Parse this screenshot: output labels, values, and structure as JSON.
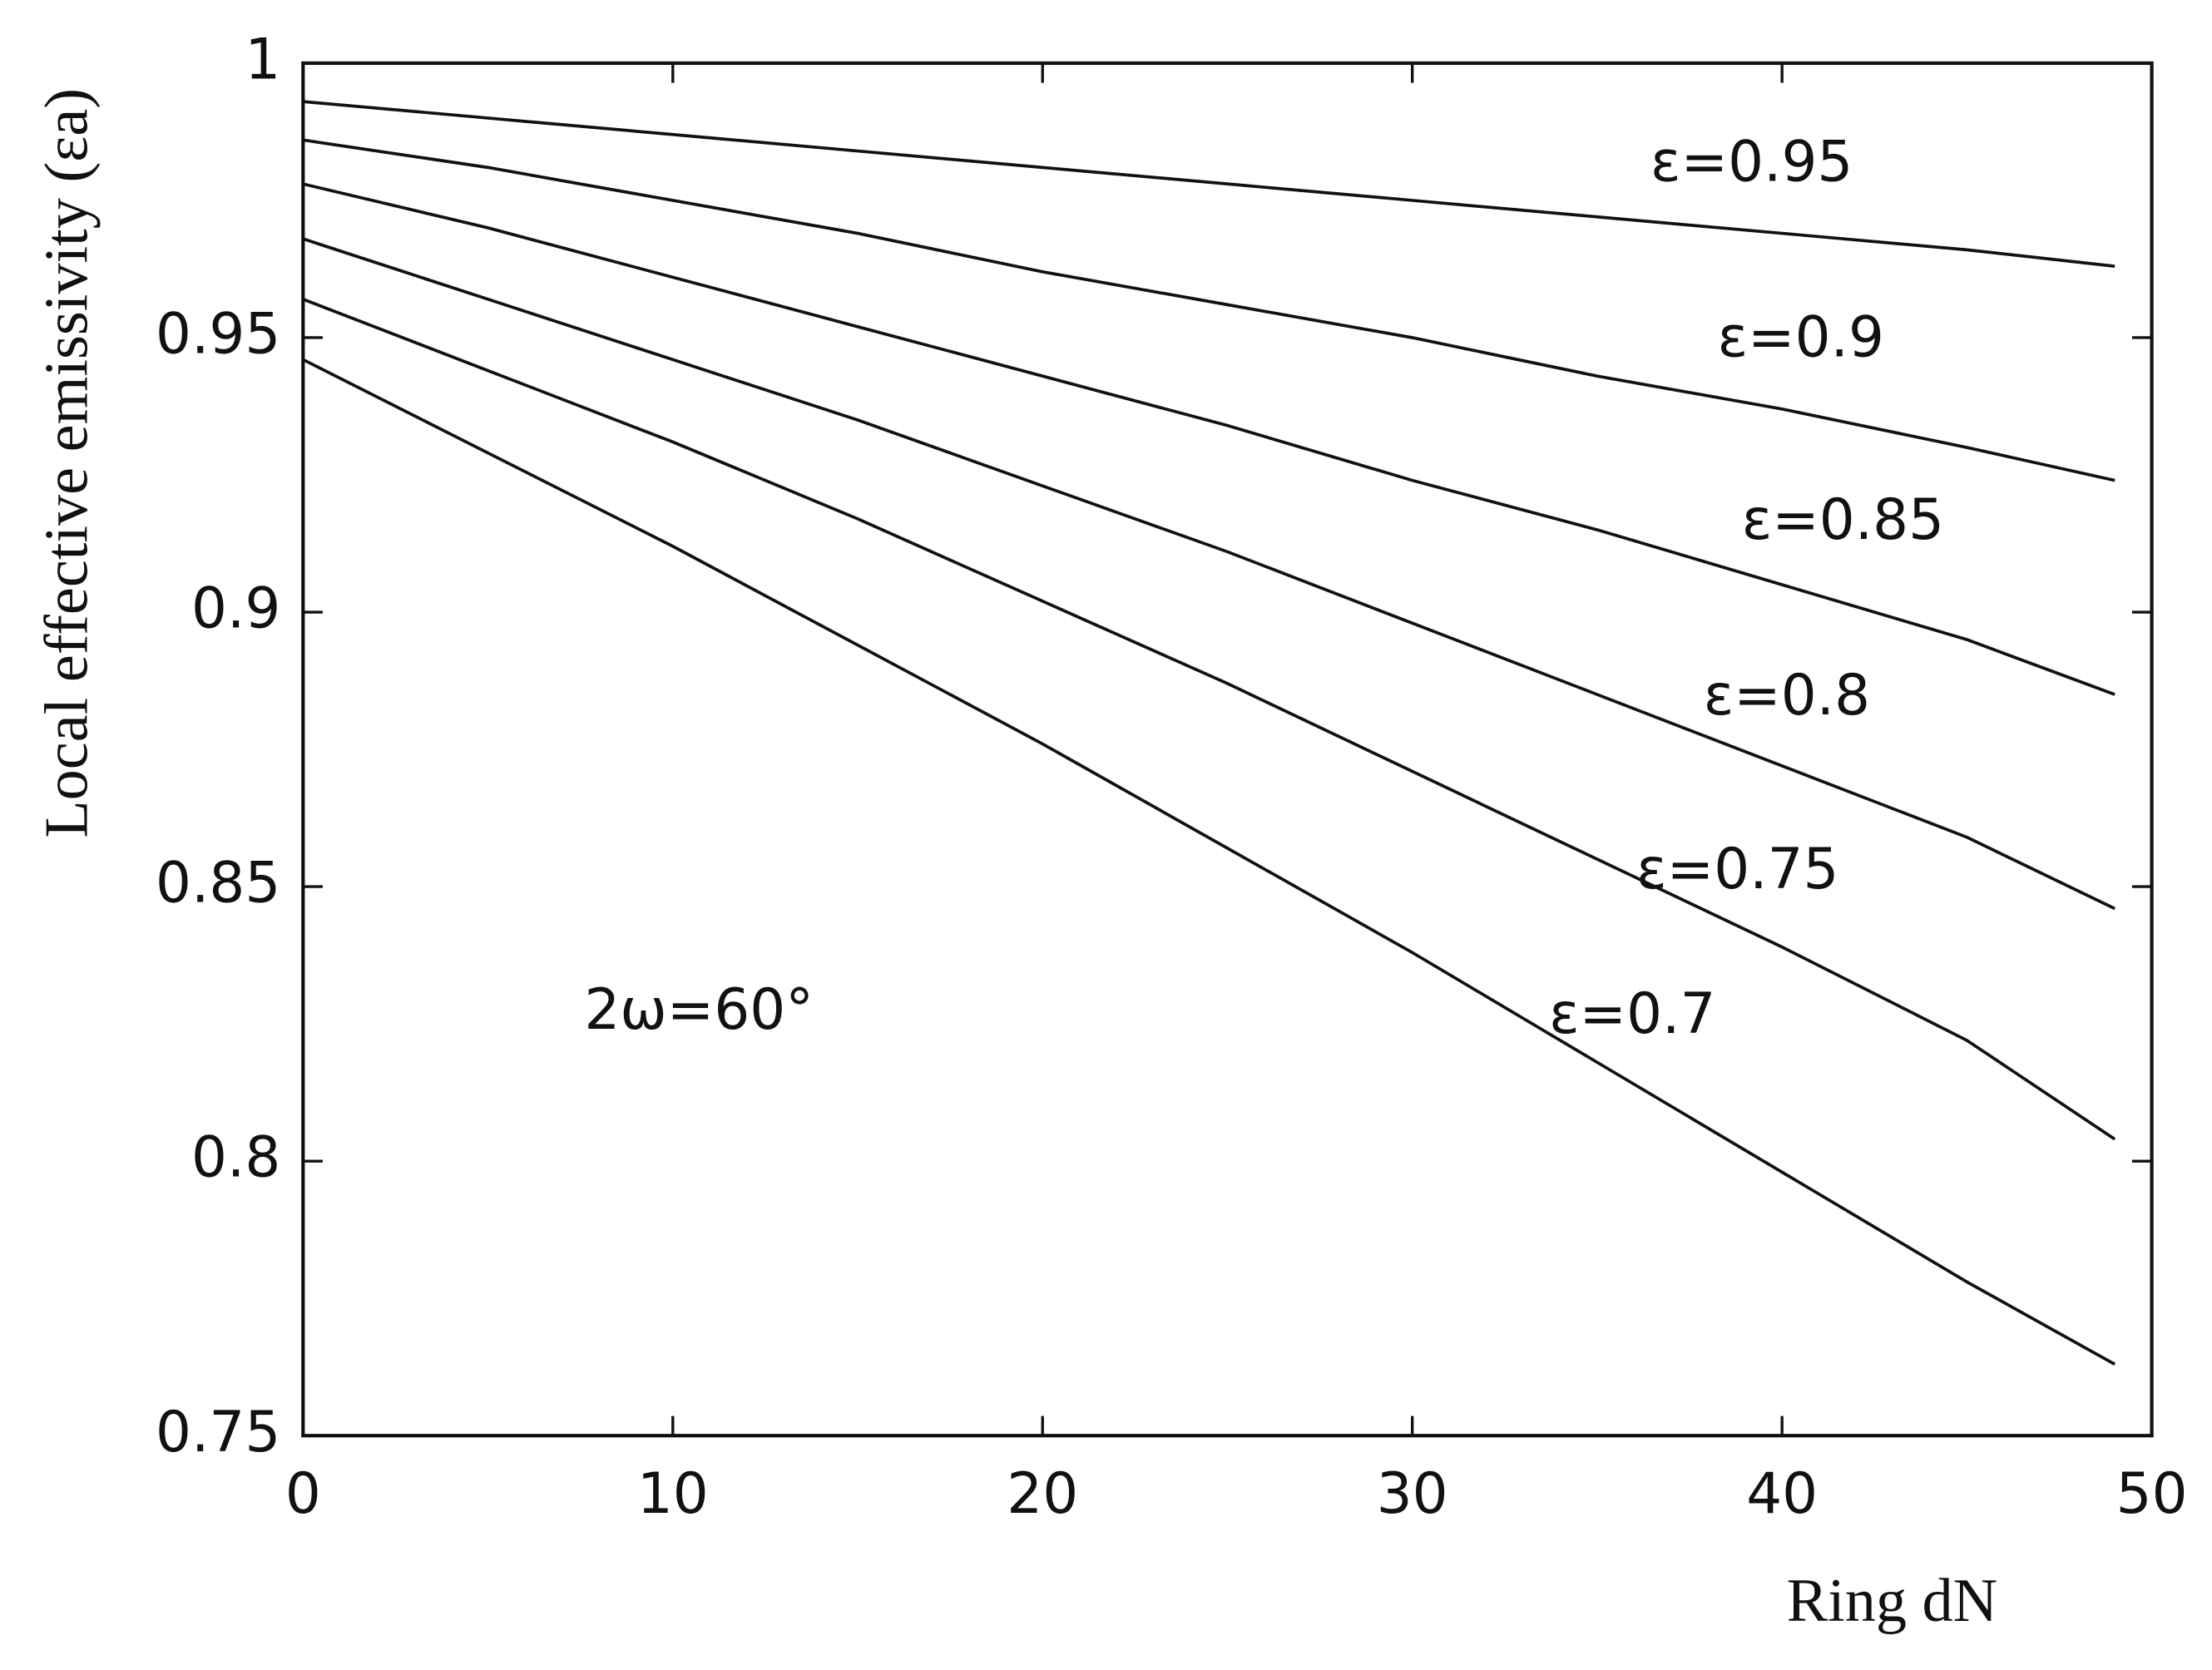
{
  "chart_data": {
    "type": "line",
    "xlabel": "Ring dN",
    "ylabel": "Local effective emissivity (εa)",
    "annotation": "2ω=60°",
    "x": [
      0,
      5,
      10,
      15,
      20,
      25,
      30,
      35,
      40,
      45,
      49
    ],
    "series": [
      {
        "name": "ε=0.95",
        "color": "#111111",
        "values": [
          0.993,
          0.99,
          0.987,
          0.984,
          0.981,
          0.978,
          0.975,
          0.972,
          0.969,
          0.966,
          0.963
        ]
      },
      {
        "name": "ε=0.9",
        "color": "#111111",
        "values": [
          0.986,
          0.981,
          0.975,
          0.969,
          0.962,
          0.956,
          0.95,
          0.943,
          0.937,
          0.93,
          0.924
        ]
      },
      {
        "name": "ε=0.85",
        "color": "#111111",
        "values": [
          0.978,
          0.97,
          0.961,
          0.952,
          0.943,
          0.934,
          0.924,
          0.915,
          0.905,
          0.895,
          0.885
        ]
      },
      {
        "name": "ε=0.8",
        "color": "#111111",
        "values": [
          0.968,
          0.957,
          0.946,
          0.935,
          0.923,
          0.911,
          0.898,
          0.885,
          0.872,
          0.859,
          0.846
        ]
      },
      {
        "name": "ε=0.75",
        "color": "#111111",
        "values": [
          0.957,
          0.944,
          0.931,
          0.917,
          0.902,
          0.887,
          0.871,
          0.855,
          0.839,
          0.822,
          0.804
        ]
      },
      {
        "name": "ε=0.7",
        "color": "#111111",
        "values": [
          0.946,
          0.929,
          0.912,
          0.894,
          0.876,
          0.857,
          0.838,
          0.818,
          0.798,
          0.778,
          0.763
        ]
      }
    ],
    "xlim": [
      0,
      50
    ],
    "xticks": [
      0,
      10,
      20,
      30,
      40,
      50
    ],
    "ylim": [
      0.75,
      1
    ],
    "yticks": [
      0.75,
      0.8,
      0.85,
      0.9,
      0.95,
      1
    ],
    "grid": false
  }
}
